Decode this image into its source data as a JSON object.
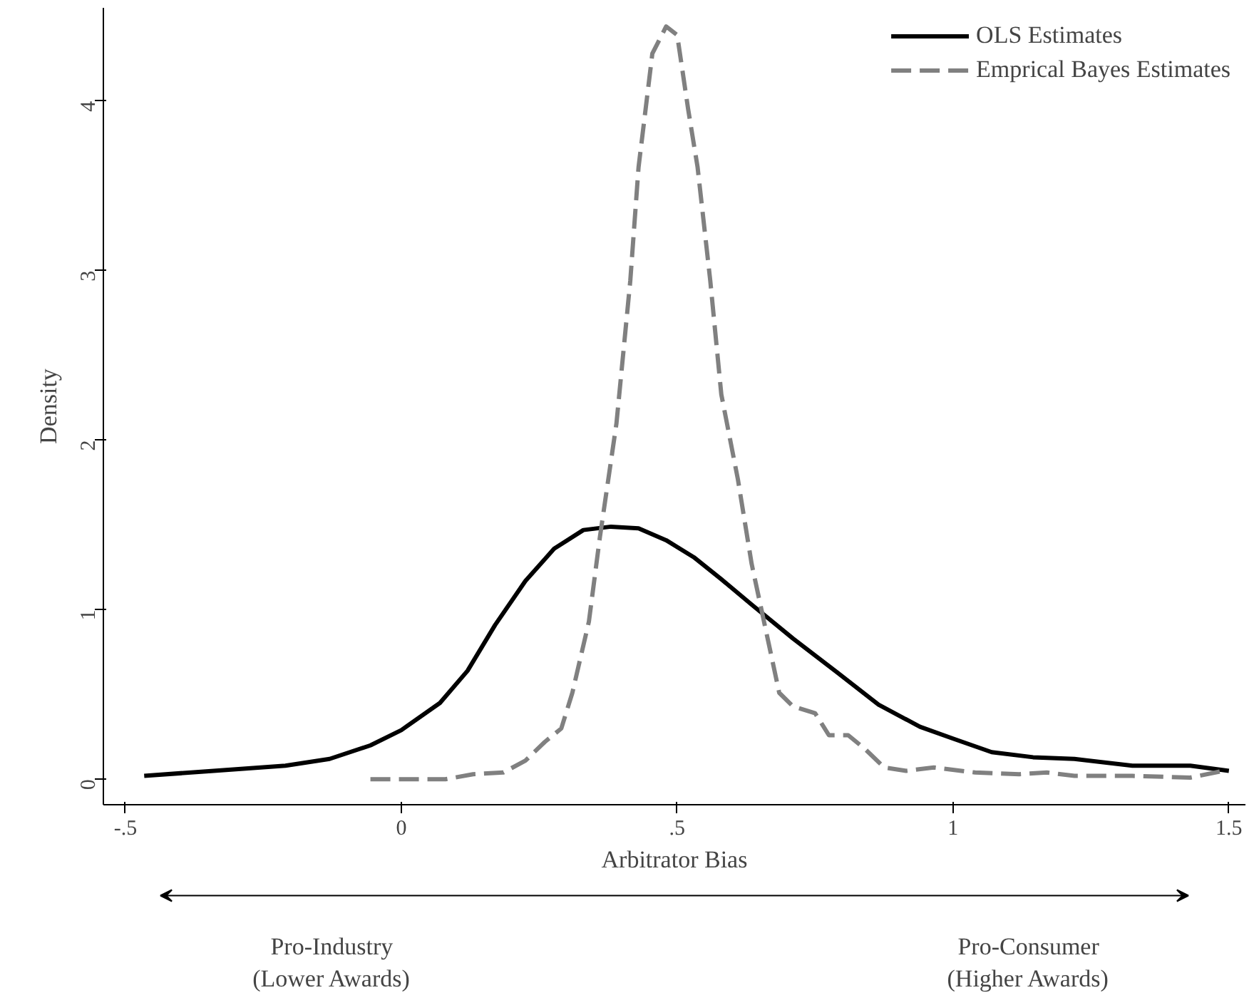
{
  "chart_data": {
    "type": "line",
    "xlabel": "Arbitrator Bias",
    "ylabel": "Density",
    "xlim": [
      -0.54,
      1.53
    ],
    "ylim": [
      -0.15,
      4.55
    ],
    "xticks": [
      {
        "value": -0.5,
        "label": "-.5"
      },
      0,
      {
        "value": 0.5,
        "label": ".5"
      },
      1,
      1.5
    ],
    "yticks": [
      0,
      1,
      2,
      3,
      4
    ],
    "grid": false,
    "legend": "top right",
    "series": [
      {
        "name": "OLS Estimates",
        "color": "#000000",
        "line_style": "solid",
        "x": [
          -0.466,
          -0.34,
          -0.21,
          -0.13,
          -0.056,
          0,
          0.07,
          0.12,
          0.17,
          0.225,
          0.277,
          0.33,
          0.38,
          0.43,
          0.48,
          0.53,
          0.58,
          0.635,
          0.71,
          0.79,
          0.865,
          0.94,
          1.0,
          1.07,
          1.145,
          1.22,
          1.325,
          1.43,
          1.5
        ],
        "values": [
          0.02,
          0.05,
          0.08,
          0.12,
          0.2,
          0.29,
          0.45,
          0.64,
          0.91,
          1.17,
          1.36,
          1.47,
          1.49,
          1.48,
          1.41,
          1.31,
          1.18,
          1.03,
          0.83,
          0.63,
          0.44,
          0.31,
          0.24,
          0.16,
          0.13,
          0.12,
          0.08,
          0.08,
          0.05
        ]
      },
      {
        "name": "Emprical Bayes Estimates",
        "color": "#808080",
        "line_style": "dashed",
        "x": [
          -0.056,
          0.08,
          0.13,
          0.185,
          0.225,
          0.26,
          0.29,
          0.31,
          0.34,
          0.36,
          0.39,
          0.415,
          0.43,
          0.455,
          0.48,
          0.5,
          0.52,
          0.537,
          0.56,
          0.58,
          0.61,
          0.635,
          0.66,
          0.685,
          0.71,
          0.75,
          0.775,
          0.81,
          0.84,
          0.875,
          0.915,
          0.965,
          1.04,
          1.12,
          1.17,
          1.22,
          1.325,
          1.43,
          1.49
        ],
        "values": [
          0,
          0,
          0.03,
          0.04,
          0.11,
          0.22,
          0.3,
          0.51,
          0.93,
          1.43,
          2.1,
          2.94,
          3.61,
          4.28,
          4.44,
          4.39,
          3.95,
          3.61,
          2.94,
          2.27,
          1.77,
          1.27,
          0.89,
          0.51,
          0.43,
          0.39,
          0.26,
          0.26,
          0.18,
          0.07,
          0.05,
          0.07,
          0.04,
          0.03,
          0.04,
          0.02,
          0.02,
          0.01,
          0.05
        ]
      }
    ],
    "annotations": [
      "Pro-Industry\n(Lower Awards)",
      "Pro-Consumer\n(Higher Awards)"
    ]
  }
}
